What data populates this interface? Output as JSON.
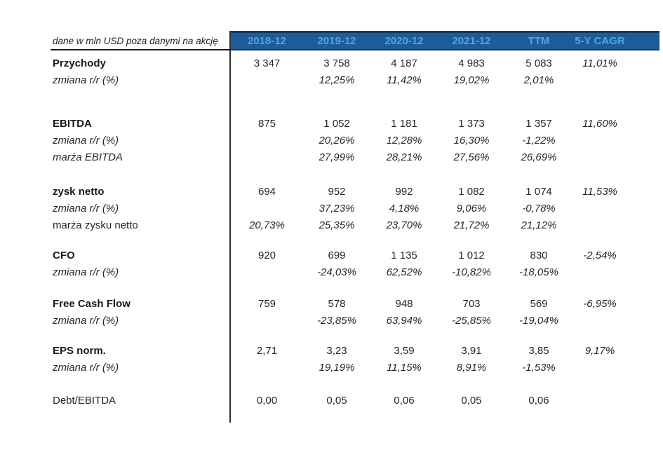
{
  "table": {
    "corner_label": "dane w mln USD poza danymi na akcję",
    "columns": [
      "2018-12",
      "2019-12",
      "2020-12",
      "2021-12",
      "TTM",
      "5-Y CAGR"
    ],
    "colors": {
      "header_bg": "#1E5C99",
      "header_text": "#4DA7DE",
      "header_border": "#16365D",
      "divider": "#2E2E2E"
    },
    "rows": [
      {
        "spacer": 6
      },
      {
        "label": "Przychody",
        "label_style": "bold",
        "values_style": "regular",
        "values": [
          "3 347",
          "3 758",
          "4 187",
          "4 983",
          "5 083",
          "11,01%"
        ]
      },
      {
        "label": "zmiana r/r (%)",
        "label_style": "italic",
        "values_style": "italic",
        "values": [
          "",
          "12,25%",
          "11,42%",
          "19,02%",
          "2,01%",
          ""
        ]
      },
      {
        "spacer": 38
      },
      {
        "label": "EBITDA",
        "label_style": "bold",
        "values_style": "regular",
        "values": [
          "875",
          "1 052",
          "1 181",
          "1 373",
          "1 357",
          "11,60%"
        ]
      },
      {
        "label": "zmiana r/r (%)",
        "label_style": "italic",
        "values_style": "italic",
        "values": [
          "",
          "20,26%",
          "12,28%",
          "16,30%",
          "-1,22%",
          ""
        ]
      },
      {
        "label": "marża EBITDA",
        "label_style": "italic",
        "values_style": "italic",
        "values": [
          "",
          "27,99%",
          "28,21%",
          "27,56%",
          "26,69%",
          ""
        ]
      },
      {
        "spacer": 25
      },
      {
        "label": "zysk netto",
        "label_style": "bold",
        "values_style": "regular",
        "values": [
          "694",
          "952",
          "992",
          "1 082",
          "1 074",
          "11,53%"
        ]
      },
      {
        "label": "zmiana r/r (%)",
        "label_style": "italic",
        "values_style": "italic",
        "values": [
          "",
          "37,23%",
          "4,18%",
          "9,06%",
          "-0,78%",
          ""
        ]
      },
      {
        "label": "marża zysku netto",
        "label_style": "regular",
        "values_style": "italic",
        "values": [
          "20,73%",
          "25,35%",
          "23,70%",
          "21,72%",
          "21,12%",
          ""
        ]
      },
      {
        "spacer": 19
      },
      {
        "label": "CFO",
        "label_style": "bold",
        "values_style": "regular",
        "values": [
          "920",
          "699",
          "1 135",
          "1 012",
          "830",
          "-2,54%"
        ]
      },
      {
        "label": "zmiana r/r (%)",
        "label_style": "italic",
        "values_style": "italic",
        "values": [
          "",
          "-24,03%",
          "62,52%",
          "-10,82%",
          "-18,05%",
          ""
        ]
      },
      {
        "spacer": 21
      },
      {
        "label": "Free Cash Flow",
        "label_style": "bold",
        "values_style": "regular",
        "values": [
          "759",
          "578",
          "948",
          "703",
          "569",
          "-6,95%"
        ]
      },
      {
        "label": "zmiana r/r (%)",
        "label_style": "italic",
        "values_style": "italic",
        "values": [
          "",
          "-23,85%",
          "63,94%",
          "-25,85%",
          "-19,04%",
          ""
        ]
      },
      {
        "spacer": 19
      },
      {
        "label": "EPS norm.",
        "label_style": "bold",
        "values_style": "regular",
        "values": [
          "2,71",
          "3,23",
          "3,59",
          "3,91",
          "3,85",
          "9,17%"
        ]
      },
      {
        "label": "zmiana r/r (%)",
        "label_style": "italic",
        "values_style": "italic",
        "values": [
          "",
          "19,19%",
          "11,15%",
          "8,91%",
          "-1,53%",
          ""
        ]
      },
      {
        "spacer": 23
      },
      {
        "label": "Debt/EBITDA",
        "label_style": "regular",
        "values_style": "regular",
        "values": [
          "0,00",
          "0,05",
          "0,06",
          "0,05",
          "0,06",
          ""
        ]
      },
      {
        "spacer": 20
      }
    ]
  }
}
